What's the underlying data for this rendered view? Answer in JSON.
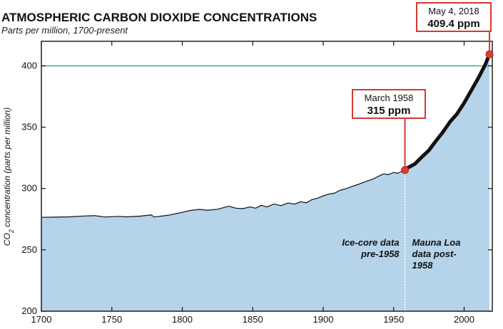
{
  "chart_data": {
    "type": "area",
    "title": "ATMOSPHERIC CARBON DIOXIDE CONCENTRATIONS",
    "subtitle": "Parts per million, 1700-present",
    "ylabel_main": "CO",
    "ylabel_sub": "2",
    "ylabel_rest": " concentration (parts per million)",
    "xlim": [
      1700,
      2020
    ],
    "ylim": [
      200,
      420
    ],
    "x_ticks": [
      1700,
      1750,
      1800,
      1850,
      1900,
      1950,
      2000
    ],
    "y_ticks": [
      200,
      250,
      300,
      350,
      400
    ],
    "reference_line": {
      "value": 400,
      "color": "#3cb371"
    },
    "fill_color": "#b5d4ea",
    "series": [
      {
        "values": [
          [
            1700,
            276.5
          ],
          [
            1710,
            276.7
          ],
          [
            1720,
            276.9
          ],
          [
            1730,
            277.6
          ],
          [
            1738,
            277.9
          ],
          [
            1745,
            276.8
          ],
          [
            1755,
            277.3
          ],
          [
            1760,
            276.9
          ],
          [
            1770,
            277.5
          ],
          [
            1778,
            278.5
          ],
          [
            1780,
            276.8
          ],
          [
            1790,
            278.2
          ],
          [
            1800,
            280.6
          ],
          [
            1805,
            282.0
          ],
          [
            1812,
            283.0
          ],
          [
            1818,
            282.3
          ],
          [
            1825,
            283.1
          ],
          [
            1833,
            285.6
          ],
          [
            1838,
            284.0
          ],
          [
            1843,
            283.6
          ],
          [
            1848,
            285.0
          ],
          [
            1852,
            284.0
          ],
          [
            1856,
            286.3
          ],
          [
            1860,
            285.0
          ],
          [
            1865,
            287.4
          ],
          [
            1870,
            286.0
          ],
          [
            1875,
            288.2
          ],
          [
            1880,
            287.3
          ],
          [
            1884,
            289.3
          ],
          [
            1888,
            288.3
          ],
          [
            1892,
            291.0
          ],
          [
            1896,
            292.1
          ],
          [
            1900,
            294.0
          ],
          [
            1904,
            295.5
          ],
          [
            1908,
            296.2
          ],
          [
            1912,
            298.6
          ],
          [
            1916,
            299.8
          ],
          [
            1920,
            301.5
          ],
          [
            1925,
            303.4
          ],
          [
            1930,
            305.6
          ],
          [
            1935,
            307.6
          ],
          [
            1940,
            310.4
          ],
          [
            1943,
            312.0
          ],
          [
            1946,
            311.3
          ],
          [
            1950,
            313.1
          ],
          [
            1953,
            312.4
          ],
          [
            1956,
            314.2
          ],
          [
            1958,
            315.0
          ]
        ]
      },
      {
        "values": [
          [
            1958,
            315.0
          ],
          [
            1960,
            316.9
          ],
          [
            1965,
            320.0
          ],
          [
            1970,
            325.7
          ],
          [
            1975,
            331.1
          ],
          [
            1980,
            338.8
          ],
          [
            1985,
            346.1
          ],
          [
            1990,
            354.4
          ],
          [
            1995,
            360.9
          ],
          [
            2000,
            369.7
          ],
          [
            2005,
            379.8
          ],
          [
            2010,
            389.9
          ],
          [
            2015,
            401.0
          ],
          [
            2018,
            409.4
          ]
        ]
      }
    ],
    "annotations": [
      {
        "line1": "March 1958",
        "line2": "315 ppm",
        "x": 1958,
        "y": 315
      },
      {
        "line1": "May 4, 2018",
        "line2": "409.4 ppm",
        "x": 2018,
        "y": 409.4
      }
    ],
    "divider_year": 1958,
    "region_labels": {
      "left": [
        "Ice-core data",
        "pre-1958"
      ],
      "right": [
        "Mauna Loa",
        "data post-",
        "1958"
      ]
    },
    "marker_color": "#e03a2f",
    "callout_border_color": "#d23a33"
  }
}
